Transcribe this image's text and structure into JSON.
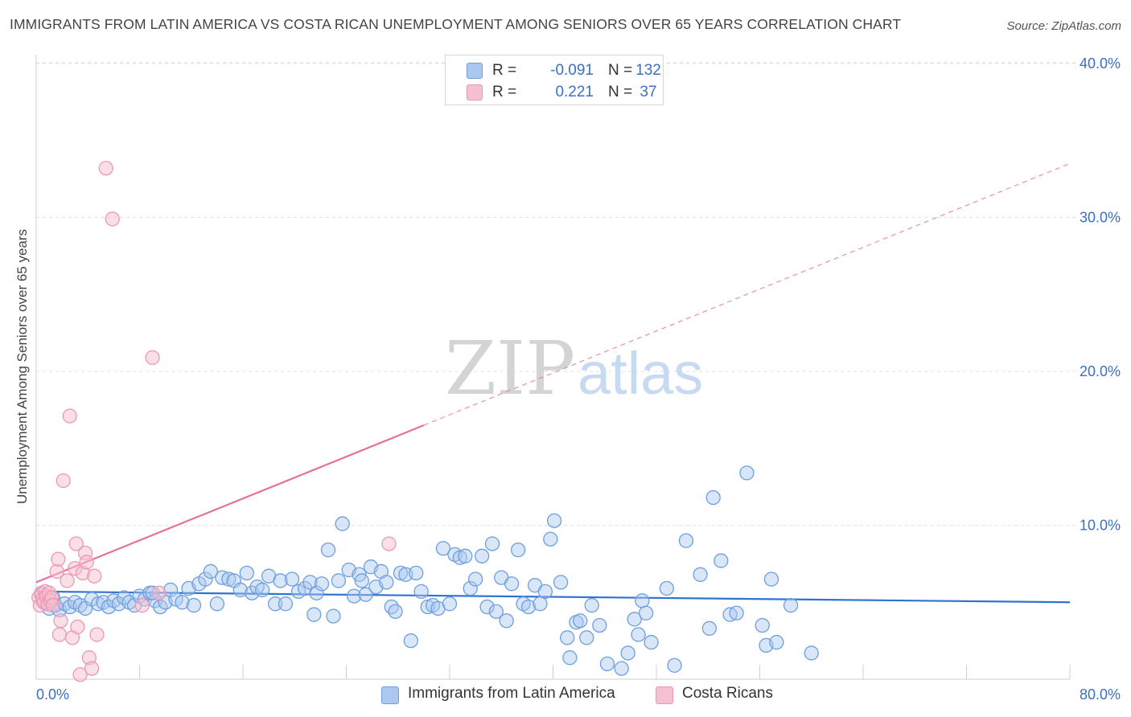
{
  "header": {
    "title": "IMMIGRANTS FROM LATIN AMERICA VS COSTA RICAN UNEMPLOYMENT AMONG SENIORS OVER 65 YEARS CORRELATION CHART",
    "source": "Source: ZipAtlas.com"
  },
  "watermark": {
    "part1": "ZIP",
    "part2": "atlas"
  },
  "legend_top": [
    {
      "r_label": "R =",
      "r_value": "-0.091",
      "n_label": "N =",
      "n_value": "132"
    },
    {
      "r_label": "R =",
      "r_value": "0.221",
      "n_label": "N =",
      "n_value": "37"
    }
  ],
  "colors": {
    "blue_fill": "#aac8f0",
    "blue_stroke": "#6d9fdf",
    "blue_line": "#2f73d0",
    "pink_fill": "#f7c0d0",
    "pink_stroke": "#ec98b4",
    "pink_line": "#e7719a",
    "grid": "#e2e2e2",
    "axis_label": "#3b6fc6"
  },
  "chart_data": {
    "type": "scatter",
    "title": "IMMIGRANTS FROM LATIN AMERICA VS COSTA RICAN UNEMPLOYMENT AMONG SENIORS OVER 65 YEARS CORRELATION CHART",
    "xlabel": "",
    "ylabel": "Unemployment Among Seniors over 65 years",
    "xlim": [
      0,
      80
    ],
    "ylim": [
      0,
      40
    ],
    "x_tick_labels": [
      "0.0%",
      "80.0%"
    ],
    "y_ticks": [
      10,
      20,
      30,
      40
    ],
    "y_tick_labels": [
      "10.0%",
      "20.0%",
      "30.0%",
      "40.0%"
    ],
    "grid": true,
    "legend_position": "bottom",
    "series": [
      {
        "name": "Immigrants from Latin America",
        "color": "#aac8f0",
        "r": -0.091,
        "n": 132,
        "trend": {
          "x0": 0,
          "y0": 5.7,
          "x1": 80,
          "y1": 5.0,
          "dashed_from": null
        },
        "points": [
          [
            0.4,
            5.5
          ],
          [
            0.7,
            5.0
          ],
          [
            1.0,
            4.6
          ],
          [
            1.3,
            5.3
          ],
          [
            1.5,
            4.8
          ],
          [
            1.8,
            4.5
          ],
          [
            2.2,
            4.9
          ],
          [
            2.6,
            4.7
          ],
          [
            3.0,
            5.0
          ],
          [
            3.4,
            4.8
          ],
          [
            3.8,
            4.6
          ],
          [
            4.3,
            5.2
          ],
          [
            4.8,
            4.9
          ],
          [
            5.2,
            5.0
          ],
          [
            5.6,
            4.7
          ],
          [
            6.0,
            5.1
          ],
          [
            6.4,
            4.9
          ],
          [
            6.8,
            5.3
          ],
          [
            7.2,
            5.0
          ],
          [
            7.6,
            4.8
          ],
          [
            8.0,
            5.4
          ],
          [
            8.4,
            5.2
          ],
          [
            8.8,
            5.6
          ],
          [
            9.2,
            5.1
          ],
          [
            9.6,
            4.7
          ],
          [
            10.0,
            5.0
          ],
          [
            10.4,
            5.8
          ],
          [
            10.8,
            5.2
          ],
          [
            11.3,
            5.0
          ],
          [
            11.8,
            5.9
          ],
          [
            12.2,
            4.8
          ],
          [
            12.6,
            6.2
          ],
          [
            13.1,
            6.5
          ],
          [
            13.5,
            7.0
          ],
          [
            14.0,
            4.9
          ],
          [
            14.4,
            6.6
          ],
          [
            14.9,
            6.5
          ],
          [
            15.3,
            6.4
          ],
          [
            15.8,
            5.8
          ],
          [
            16.3,
            6.9
          ],
          [
            16.7,
            5.6
          ],
          [
            17.1,
            6.0
          ],
          [
            17.5,
            5.8
          ],
          [
            18.0,
            6.7
          ],
          [
            18.5,
            4.9
          ],
          [
            18.9,
            6.4
          ],
          [
            19.3,
            4.9
          ],
          [
            19.8,
            6.5
          ],
          [
            20.3,
            5.7
          ],
          [
            20.8,
            5.9
          ],
          [
            21.2,
            6.3
          ],
          [
            21.5,
            4.2
          ],
          [
            21.7,
            5.6
          ],
          [
            22.1,
            6.2
          ],
          [
            22.6,
            8.4
          ],
          [
            23.0,
            4.1
          ],
          [
            23.4,
            6.4
          ],
          [
            23.7,
            10.1
          ],
          [
            24.2,
            7.1
          ],
          [
            24.6,
            5.4
          ],
          [
            25.0,
            6.8
          ],
          [
            25.5,
            5.5
          ],
          [
            25.9,
            7.3
          ],
          [
            26.3,
            6.0
          ],
          [
            26.7,
            7.0
          ],
          [
            27.1,
            6.3
          ],
          [
            27.5,
            4.7
          ],
          [
            27.8,
            4.4
          ],
          [
            28.2,
            6.9
          ],
          [
            28.6,
            6.8
          ],
          [
            29.0,
            2.5
          ],
          [
            29.4,
            6.9
          ],
          [
            29.8,
            5.7
          ],
          [
            30.3,
            4.7
          ],
          [
            30.7,
            4.8
          ],
          [
            31.1,
            4.6
          ],
          [
            31.5,
            8.5
          ],
          [
            32.0,
            4.9
          ],
          [
            32.4,
            8.1
          ],
          [
            32.8,
            7.9
          ],
          [
            33.2,
            8.0
          ],
          [
            33.6,
            5.9
          ],
          [
            34.0,
            6.5
          ],
          [
            34.5,
            8.0
          ],
          [
            34.9,
            4.7
          ],
          [
            35.3,
            8.8
          ],
          [
            35.6,
            4.4
          ],
          [
            36.0,
            6.6
          ],
          [
            36.4,
            3.8
          ],
          [
            36.8,
            6.2
          ],
          [
            37.3,
            8.4
          ],
          [
            37.7,
            4.9
          ],
          [
            38.1,
            4.7
          ],
          [
            38.6,
            6.1
          ],
          [
            39.0,
            4.9
          ],
          [
            39.4,
            5.7
          ],
          [
            39.8,
            9.1
          ],
          [
            40.1,
            10.3
          ],
          [
            40.6,
            6.3
          ],
          [
            41.1,
            2.7
          ],
          [
            41.3,
            1.4
          ],
          [
            41.8,
            3.7
          ],
          [
            42.1,
            3.8
          ],
          [
            42.6,
            2.7
          ],
          [
            43.0,
            4.8
          ],
          [
            43.6,
            3.5
          ],
          [
            44.2,
            1.0
          ],
          [
            45.3,
            0.7
          ],
          [
            45.8,
            1.7
          ],
          [
            46.3,
            3.9
          ],
          [
            46.6,
            2.9
          ],
          [
            46.9,
            5.1
          ],
          [
            47.2,
            4.3
          ],
          [
            47.6,
            2.4
          ],
          [
            48.8,
            5.9
          ],
          [
            49.4,
            0.9
          ],
          [
            50.3,
            9.0
          ],
          [
            51.4,
            6.8
          ],
          [
            52.1,
            3.3
          ],
          [
            52.4,
            11.8
          ],
          [
            53.0,
            7.7
          ],
          [
            53.7,
            4.2
          ],
          [
            54.2,
            4.3
          ],
          [
            55.0,
            13.4
          ],
          [
            56.2,
            3.5
          ],
          [
            56.5,
            2.2
          ],
          [
            56.9,
            6.5
          ],
          [
            57.3,
            2.4
          ],
          [
            58.4,
            4.8
          ],
          [
            60.0,
            1.7
          ],
          [
            9.0,
            5.6
          ],
          [
            25.2,
            6.4
          ]
        ]
      },
      {
        "name": "Costa Ricans",
        "color": "#f7c0d0",
        "r": 0.221,
        "n": 37,
        "trend": {
          "x0": 0,
          "y0": 6.3,
          "x1": 80,
          "y1": 33.5,
          "solid_to": 30
        },
        "points": [
          [
            0.2,
            5.3
          ],
          [
            0.3,
            4.8
          ],
          [
            0.4,
            5.6
          ],
          [
            0.5,
            5.2
          ],
          [
            0.6,
            5.0
          ],
          [
            0.7,
            5.7
          ],
          [
            0.8,
            5.4
          ],
          [
            0.9,
            4.9
          ],
          [
            1.0,
            5.6
          ],
          [
            1.1,
            5.1
          ],
          [
            1.2,
            5.3
          ],
          [
            1.3,
            4.8
          ],
          [
            1.6,
            7.0
          ],
          [
            1.7,
            7.8
          ],
          [
            1.8,
            2.9
          ],
          [
            1.9,
            3.8
          ],
          [
            2.1,
            12.9
          ],
          [
            2.4,
            6.4
          ],
          [
            2.6,
            17.1
          ],
          [
            2.8,
            2.7
          ],
          [
            3.0,
            7.2
          ],
          [
            3.1,
            8.8
          ],
          [
            3.2,
            3.4
          ],
          [
            3.4,
            0.3
          ],
          [
            3.6,
            6.9
          ],
          [
            3.8,
            8.2
          ],
          [
            3.9,
            7.6
          ],
          [
            4.1,
            1.4
          ],
          [
            4.3,
            0.7
          ],
          [
            4.5,
            6.7
          ],
          [
            4.7,
            2.9
          ],
          [
            5.4,
            33.2
          ],
          [
            5.9,
            29.9
          ],
          [
            8.2,
            4.8
          ],
          [
            9.0,
            20.9
          ],
          [
            9.5,
            5.6
          ],
          [
            27.3,
            8.8
          ]
        ]
      }
    ]
  },
  "legend_bottom": [
    {
      "label": "Immigrants from Latin America"
    },
    {
      "label": "Costa Ricans"
    }
  ]
}
